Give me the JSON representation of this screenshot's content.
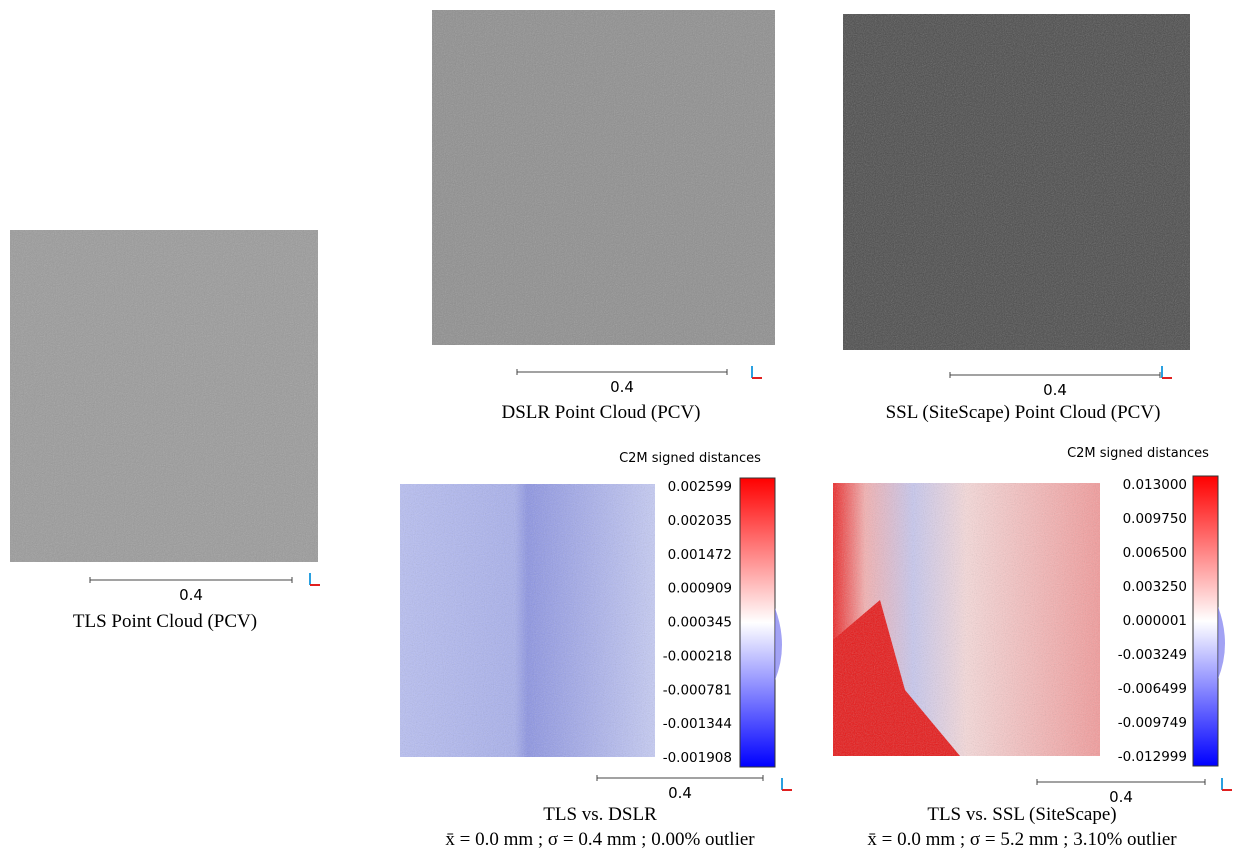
{
  "panels": [
    {
      "caption": "TLS Point Cloud (PCV)",
      "scale": "0.4"
    },
    {
      "caption": "DSLR Point Cloud (PCV)",
      "scale": "0.4"
    },
    {
      "caption": "SSL (SiteScape) Point Cloud (PCV)",
      "scale": "0.4"
    },
    {
      "caption": "TLS vs. DSLR",
      "stats": "x̄ = 0.0 mm ; σ = 0.4 mm ; 0.00% outlier",
      "scale": "0.4",
      "colorbar": {
        "title": "C2M signed distances",
        "ticks": [
          "0.002599",
          "0.002035",
          "0.001472",
          "0.000909",
          "0.000345",
          "-0.000218",
          "-0.000781",
          "-0.001344",
          "-0.001908"
        ]
      }
    },
    {
      "caption": "TLS vs. SSL (SiteScape)",
      "stats": "x̄ = 0.0 mm ; σ = 5.2 mm ; 3.10% outlier",
      "scale": "0.4",
      "colorbar": {
        "title": "C2M signed distances",
        "ticks": [
          "0.013000",
          "0.009750",
          "0.006500",
          "0.003250",
          "0.000001",
          "-0.003249",
          "-0.006499",
          "-0.009749",
          "-0.012999"
        ]
      }
    }
  ]
}
